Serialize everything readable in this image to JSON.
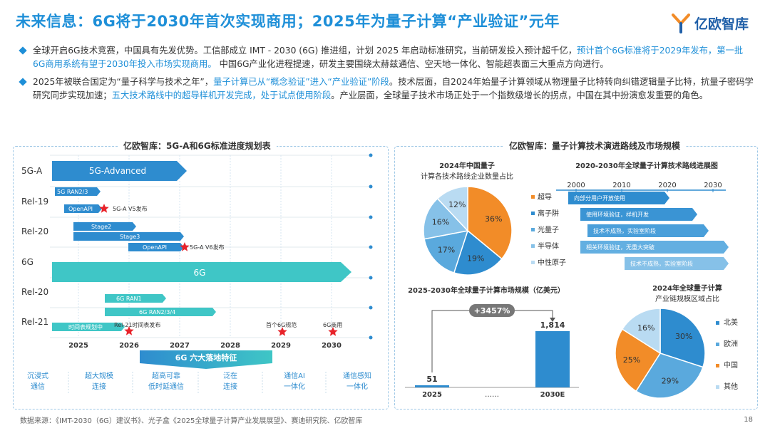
{
  "header": {
    "title": "未来信息：6G将于2030年首次实现商用；2025年为量子计算“产业验证”元年",
    "logo_text": "亿欧智库"
  },
  "bullets": [
    {
      "parts": [
        {
          "t": "全球开启6G技术竞赛，中国具有先发优势。工信部成立 IMT - 2030 (6G) 推进组，计划 2025 年启动标准研究，当前研发投入预计超千亿，",
          "hl": false
        },
        {
          "t": "预计首个6G标准将于2029年发布，第一批6G商用系统有望于2030年投入市场实现商用。",
          "hl": true
        },
        {
          "t": " 中国6G产业化进程提速，研发主要围绕太赫兹通信、空天地一体化、智能超表面三大重点方向进行。",
          "hl": false
        }
      ]
    },
    {
      "parts": [
        {
          "t": "2025年被联合国定为“量子科学与技术之年”，",
          "hl": false
        },
        {
          "t": "量子计算已从“概念验证”进入“产业验证”阶段",
          "hl": true
        },
        {
          "t": "。技术层面，自2024年始量子计算领域从物理量子比特转向纠错逻辑量子比特，抗量子密码学研究同步实现加速；",
          "hl": false
        },
        {
          "t": "五大技术路线中的超导样机开发完成，处于试点使用阶段",
          "hl": true
        },
        {
          "t": "。产业层面，全球量子技术市场正处于一个指数级增长的拐点，中国在其中扮演愈发重要的角色。",
          "hl": false
        }
      ]
    }
  ],
  "left_panel": {
    "title": "亿欧智库：5G-A和6G标准进度规划表",
    "rows": [
      "5G-A",
      "Rel-19",
      "Rel-20",
      "6G",
      "Rel-20",
      "Rel-21"
    ],
    "years": [
      "2025",
      "2026",
      "2027",
      "2028",
      "2029",
      "2030"
    ],
    "bars": [
      {
        "label": "5G-Advanced"
      },
      {
        "label": "5G RAN2/3"
      },
      {
        "label": "OpenAPI"
      },
      {
        "label": "Stage2"
      },
      {
        "label": "Stage3"
      },
      {
        "label": "OpenAPI"
      },
      {
        "label": "6G"
      },
      {
        "label": "6G RAN1"
      },
      {
        "label": "6G  RAN2/3/4"
      },
      {
        "label": "时间表规划中"
      }
    ],
    "milestones": [
      "5G-A  V5发布",
      "5G-A  V6发布",
      "Rel-21时间表发布",
      "首个6G规范",
      "6G商用"
    ],
    "features_title": "6G 六大落地特征",
    "features": [
      [
        "沉浸式",
        "通信"
      ],
      [
        "超大规模",
        "连接"
      ],
      [
        "超高可靠",
        "低时延通信"
      ],
      [
        "泛在",
        "连接"
      ],
      [
        "通信AI",
        "一体化"
      ],
      [
        "通信感知",
        "一体化"
      ]
    ]
  },
  "right_panel": {
    "title": "亿欧智库：量子计算技术演进路线及市场规模",
    "roadmap_title": "2020-2030年全球量子计算技术路线进展图",
    "roadmap_years": [
      "2000",
      "2010",
      "2020",
      "2030"
    ],
    "routes": [
      "超导",
      "离子阱",
      "光量子",
      "半导体",
      "中性原子"
    ],
    "route_bars": [
      "向部分用户开放使用",
      "使用环境验证，样机开发",
      "技术不成熟，实验室阶段",
      "相关环境验证，无重大突破",
      "技术不成熟，实验室阶段"
    ],
    "market_title": "2025-2030年全球量子计算市场规模（亿美元）",
    "market_growth": "+3457%",
    "market_ellipsis": "……",
    "market_data_labels": [
      "51",
      "1,814"
    ],
    "market_xlabels": [
      "2025",
      "2030E"
    ]
  },
  "chart_data": [
    {
      "type": "pie",
      "title": "2024年中国量子计算各技术路线企业数量占比",
      "labels": [
        "超导",
        "离子阱",
        "光量子",
        "半导体",
        "中性原子"
      ],
      "values": [
        36,
        19,
        17,
        16,
        12
      ],
      "value_labels": [
        "36%",
        "19%",
        "17%",
        "16%",
        "12%"
      ],
      "colors": [
        "#f28c28",
        "#2e8ccf",
        "#5aa9dd",
        "#86c1e8",
        "#b9dbf2"
      ]
    },
    {
      "type": "bar",
      "title": "2025-2030年全球量子计算市场规模（亿美元）",
      "categories": [
        "2025",
        "2030E"
      ],
      "values": [
        51,
        1814
      ],
      "annotation": "+3457%"
    },
    {
      "type": "pie",
      "title": "2024年全球量子计算产业链规模区域占比",
      "labels": [
        "北美",
        "欧洲",
        "中国",
        "其他"
      ],
      "values": [
        30,
        29,
        25,
        16
      ],
      "value_labels": [
        "30%",
        "29%",
        "25%",
        "16%"
      ],
      "colors": [
        "#2e8ccf",
        "#5aa9dd",
        "#f28c28",
        "#b9dbf2"
      ]
    }
  ],
  "colors": {
    "primary": "#1e8fd8",
    "timeline_bar": "#2e8ccf",
    "sixg_bar": "#3fc6c6",
    "star": "#e8232a",
    "orange": "#f28c28"
  },
  "footer": {
    "source": "数据来源：《IMT-2030（6G）建议书》、光子盒《2025全球量子计算产业发展展望》、赛迪研究院、亿欧智库",
    "page": "18"
  }
}
